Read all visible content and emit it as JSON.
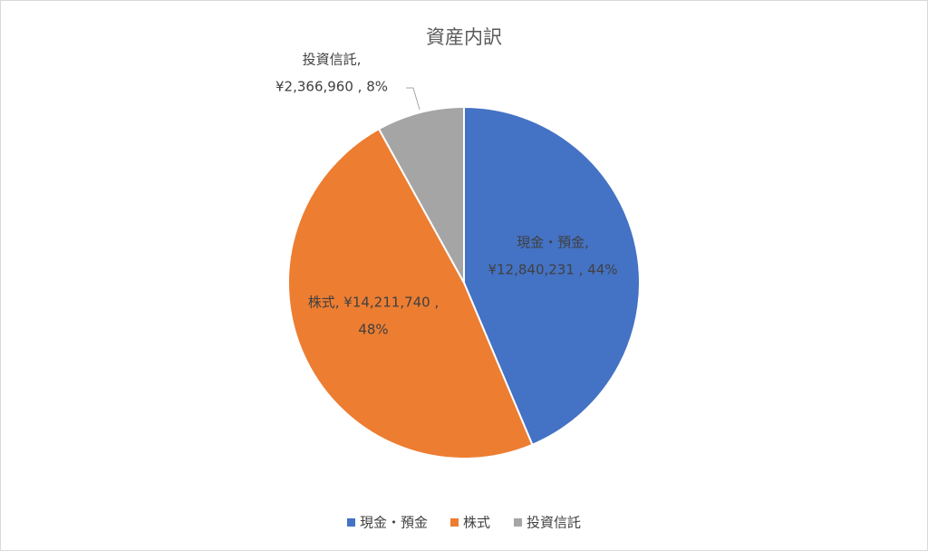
{
  "chart_data": {
    "type": "pie",
    "title": "資産内訳",
    "categories": [
      "現金・預金",
      "株式",
      "投資信託"
    ],
    "values": [
      12840231,
      14211740,
      2366960
    ],
    "colors": [
      "#4472c4",
      "#ed7d31",
      "#a5a5a5"
    ],
    "data_labels": [
      [
        "現金・預金,",
        "¥12,840,231 , 44%"
      ],
      [
        "株式, ¥14,211,740 ,",
        "48%"
      ],
      [
        "投資信託,",
        "¥2,366,960 , 8%"
      ]
    ],
    "legend": "bottom"
  }
}
